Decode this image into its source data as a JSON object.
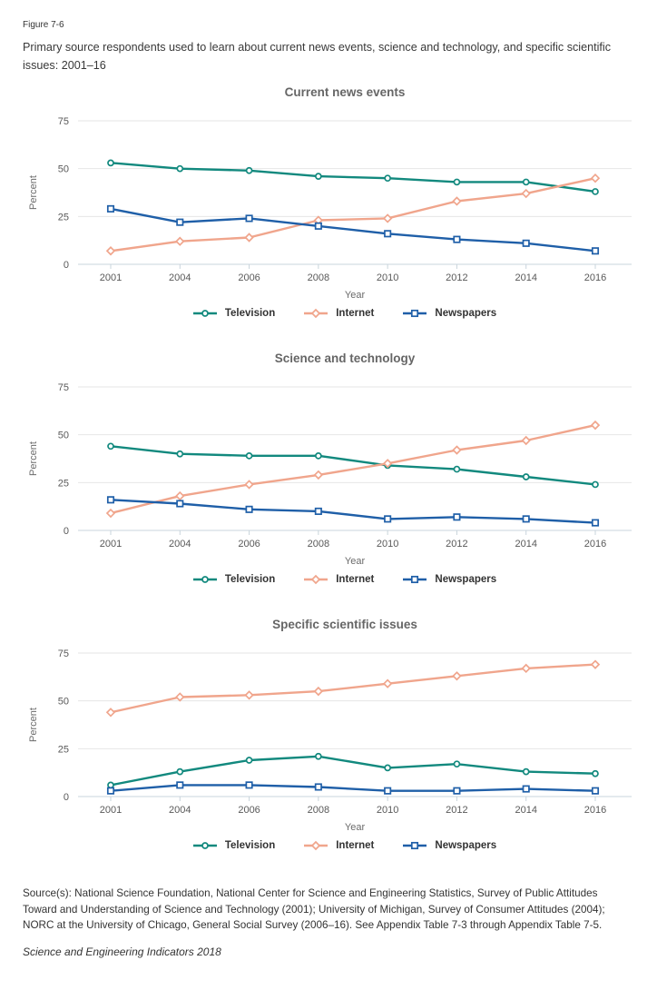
{
  "figure": {
    "label": "Figure 7-6",
    "caption": "Primary source respondents used to learn about current news events, science and technology, and specific scientific issues: 2001–16"
  },
  "palette": {
    "television": "#12897E",
    "internet": "#F0A58C",
    "newspapers": "#1F5FA8",
    "gridline": "#E6E6E6",
    "axis_line": "#C9D4DC",
    "tick_text": "#595959",
    "title_text": "#666666",
    "legend_text": "#333333"
  },
  "chart_data": [
    {
      "type": "line",
      "title": "Current news events",
      "xlabel": "Year",
      "ylabel": "Percent",
      "ylim": [
        0,
        75
      ],
      "yticks": [
        0,
        25,
        50,
        75
      ],
      "grid": true,
      "legend_position": "bottom",
      "categories": [
        "2001",
        "2004",
        "2006",
        "2008",
        "2010",
        "2012",
        "2014",
        "2016"
      ],
      "series": [
        {
          "name": "Television",
          "marker": "circle",
          "color": "#12897E",
          "values": [
            53,
            50,
            49,
            46,
            45,
            43,
            43,
            38
          ]
        },
        {
          "name": "Internet",
          "marker": "diamond",
          "color": "#F0A58C",
          "values": [
            7,
            12,
            14,
            23,
            24,
            33,
            37,
            45
          ]
        },
        {
          "name": "Newspapers",
          "marker": "square",
          "color": "#1F5FA8",
          "values": [
            29,
            22,
            24,
            20,
            16,
            13,
            11,
            7
          ]
        }
      ]
    },
    {
      "type": "line",
      "title": "Science and technology",
      "xlabel": "Year",
      "ylabel": "Percent",
      "ylim": [
        0,
        75
      ],
      "yticks": [
        0,
        25,
        50,
        75
      ],
      "grid": true,
      "legend_position": "bottom",
      "categories": [
        "2001",
        "2004",
        "2006",
        "2008",
        "2010",
        "2012",
        "2014",
        "2016"
      ],
      "series": [
        {
          "name": "Television",
          "marker": "circle",
          "color": "#12897E",
          "values": [
            44,
            40,
            39,
            39,
            34,
            32,
            28,
            24
          ]
        },
        {
          "name": "Internet",
          "marker": "diamond",
          "color": "#F0A58C",
          "values": [
            9,
            18,
            24,
            29,
            35,
            42,
            47,
            55
          ]
        },
        {
          "name": "Newspapers",
          "marker": "square",
          "color": "#1F5FA8",
          "values": [
            16,
            14,
            11,
            10,
            6,
            7,
            6,
            4
          ]
        }
      ]
    },
    {
      "type": "line",
      "title": "Specific scientific issues",
      "xlabel": "Year",
      "ylabel": "Percent",
      "ylim": [
        0,
        75
      ],
      "yticks": [
        0,
        25,
        50,
        75
      ],
      "grid": true,
      "legend_position": "bottom",
      "categories": [
        "2001",
        "2004",
        "2006",
        "2008",
        "2010",
        "2012",
        "2014",
        "2016"
      ],
      "series": [
        {
          "name": "Television",
          "marker": "circle",
          "color": "#12897E",
          "values": [
            6,
            13,
            19,
            21,
            15,
            17,
            13,
            12
          ]
        },
        {
          "name": "Internet",
          "marker": "diamond",
          "color": "#F0A58C",
          "values": [
            44,
            52,
            53,
            55,
            59,
            63,
            67,
            69
          ]
        },
        {
          "name": "Newspapers",
          "marker": "square",
          "color": "#1F5FA8",
          "values": [
            3,
            6,
            6,
            5,
            3,
            3,
            4,
            3
          ]
        }
      ]
    }
  ],
  "footer": {
    "source": "Source(s): National Science Foundation, National Center for Science and Engineering Statistics, Survey of Public Attitudes Toward and Understanding of Science and Technology (2001); University of Michigan, Survey of Consumer Attitudes (2004); NORC at the University of Chicago, General Social Survey (2006–16). See Appendix Table 7-3 through Appendix Table 7-5.",
    "attribution": "Science and Engineering Indicators 2018"
  }
}
